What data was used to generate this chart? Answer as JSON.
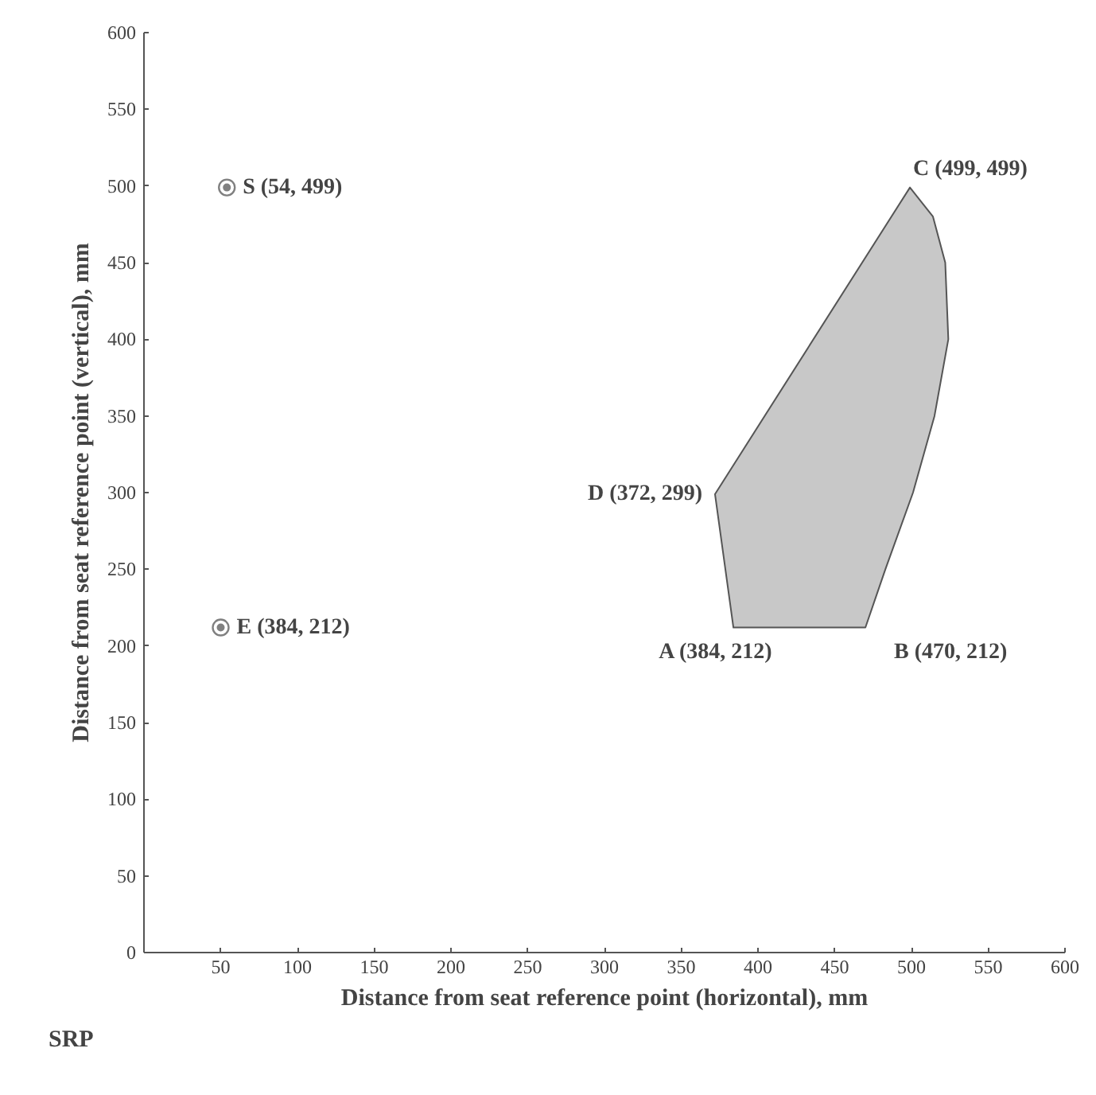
{
  "chart_data": {
    "type": "area",
    "xlabel": "Distance from seat reference point (horizontal), mm",
    "ylabel": "Distance from seat reference point (vertical), mm",
    "xlim": [
      0,
      600
    ],
    "ylim": [
      0,
      600
    ],
    "xticks": [
      {
        "value": 0,
        "label": null
      },
      50,
      100,
      150,
      200,
      250,
      300,
      350,
      400,
      450,
      500,
      550,
      600
    ],
    "yticks": [
      0,
      50,
      100,
      150,
      200,
      250,
      300,
      350,
      400,
      450,
      500,
      550,
      600
    ],
    "grid": false,
    "series": [
      {
        "color": "#c8c8c8",
        "x": [
          384,
          470,
          483,
          501,
          515,
          524,
          522,
          514,
          499,
          372
        ],
        "values": [
          212,
          212,
          250,
          300,
          350,
          400,
          450,
          480,
          499,
          299
        ]
      },
      {
        "type": "scatter",
        "marker": "circle",
        "color": "#808080",
        "x": [
          54,
          50
        ],
        "values": [
          499,
          212
        ]
      }
    ],
    "annotations": [
      {
        "text": "S (54, 499)",
        "x": 54,
        "y": 499
      },
      {
        "text": "E (384, 212)",
        "x": 50,
        "y": 212
      },
      {
        "text": "A (384, 212)",
        "x": 384,
        "y": 212
      },
      {
        "text": "B (470, 212)",
        "x": 470,
        "y": 212
      },
      {
        "text": "D (372, 299)",
        "x": 372,
        "y": 299
      },
      {
        "text": "C (499, 499)",
        "x": 499,
        "y": 499
      },
      "SRP"
    ]
  }
}
